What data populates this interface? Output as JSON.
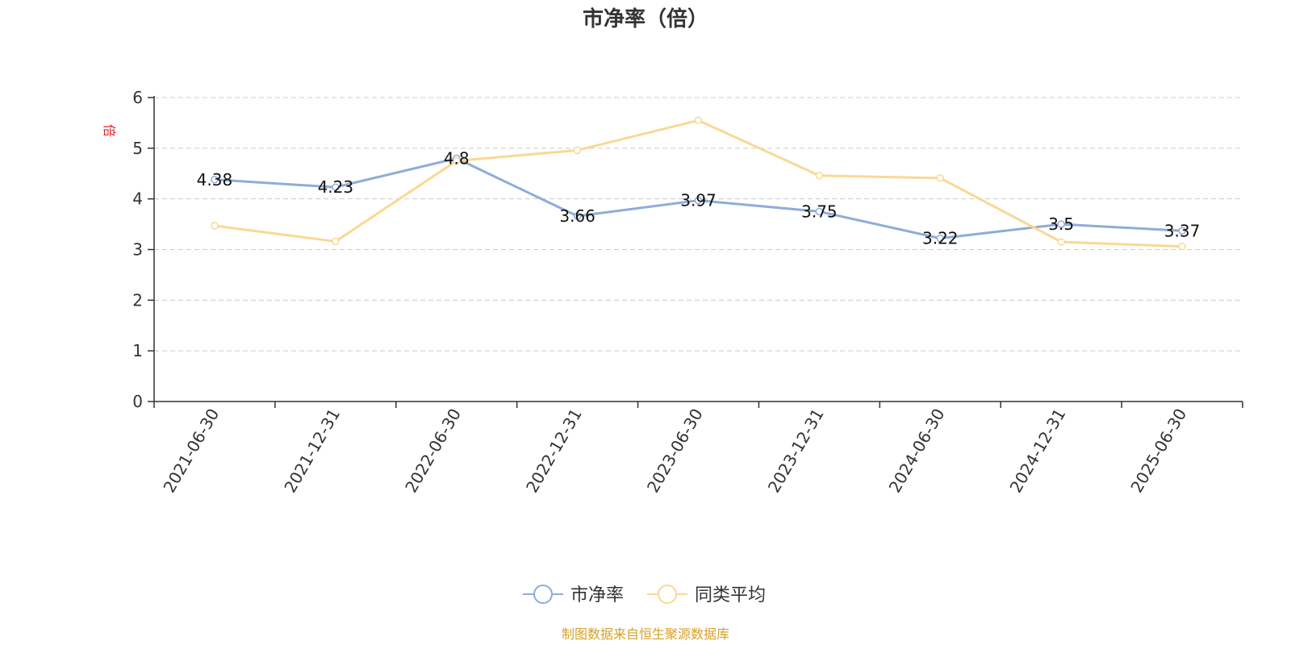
{
  "chart_data": {
    "type": "line",
    "title": "市净率（倍）",
    "ylabel": "倍",
    "categories": [
      "2021-06-30",
      "2021-12-31",
      "2022-06-30",
      "2022-12-31",
      "2023-06-30",
      "2023-12-31",
      "2024-06-30",
      "2024-12-31",
      "2025-06-30"
    ],
    "ylim": [
      0,
      6
    ],
    "yticks": [
      0,
      1,
      2,
      3,
      4,
      5,
      6
    ],
    "grid": true,
    "legend_position": "bottom",
    "series": [
      {
        "name": "市净率",
        "color": "#8eacd8",
        "values": [
          4.38,
          4.23,
          4.8,
          3.66,
          3.97,
          3.75,
          3.22,
          3.5,
          3.37
        ],
        "labels": [
          "4.38",
          "4.23",
          "4.8",
          "3.66",
          "3.97",
          "3.75",
          "3.22",
          "3.5",
          "3.37"
        ]
      },
      {
        "name": "同类平均",
        "color": "#fad894",
        "values": [
          3.47,
          3.16,
          4.75,
          4.96,
          5.55,
          4.46,
          4.41,
          3.15,
          3.06
        ]
      }
    ]
  },
  "source_note": "制图数据来自恒生聚源数据库"
}
